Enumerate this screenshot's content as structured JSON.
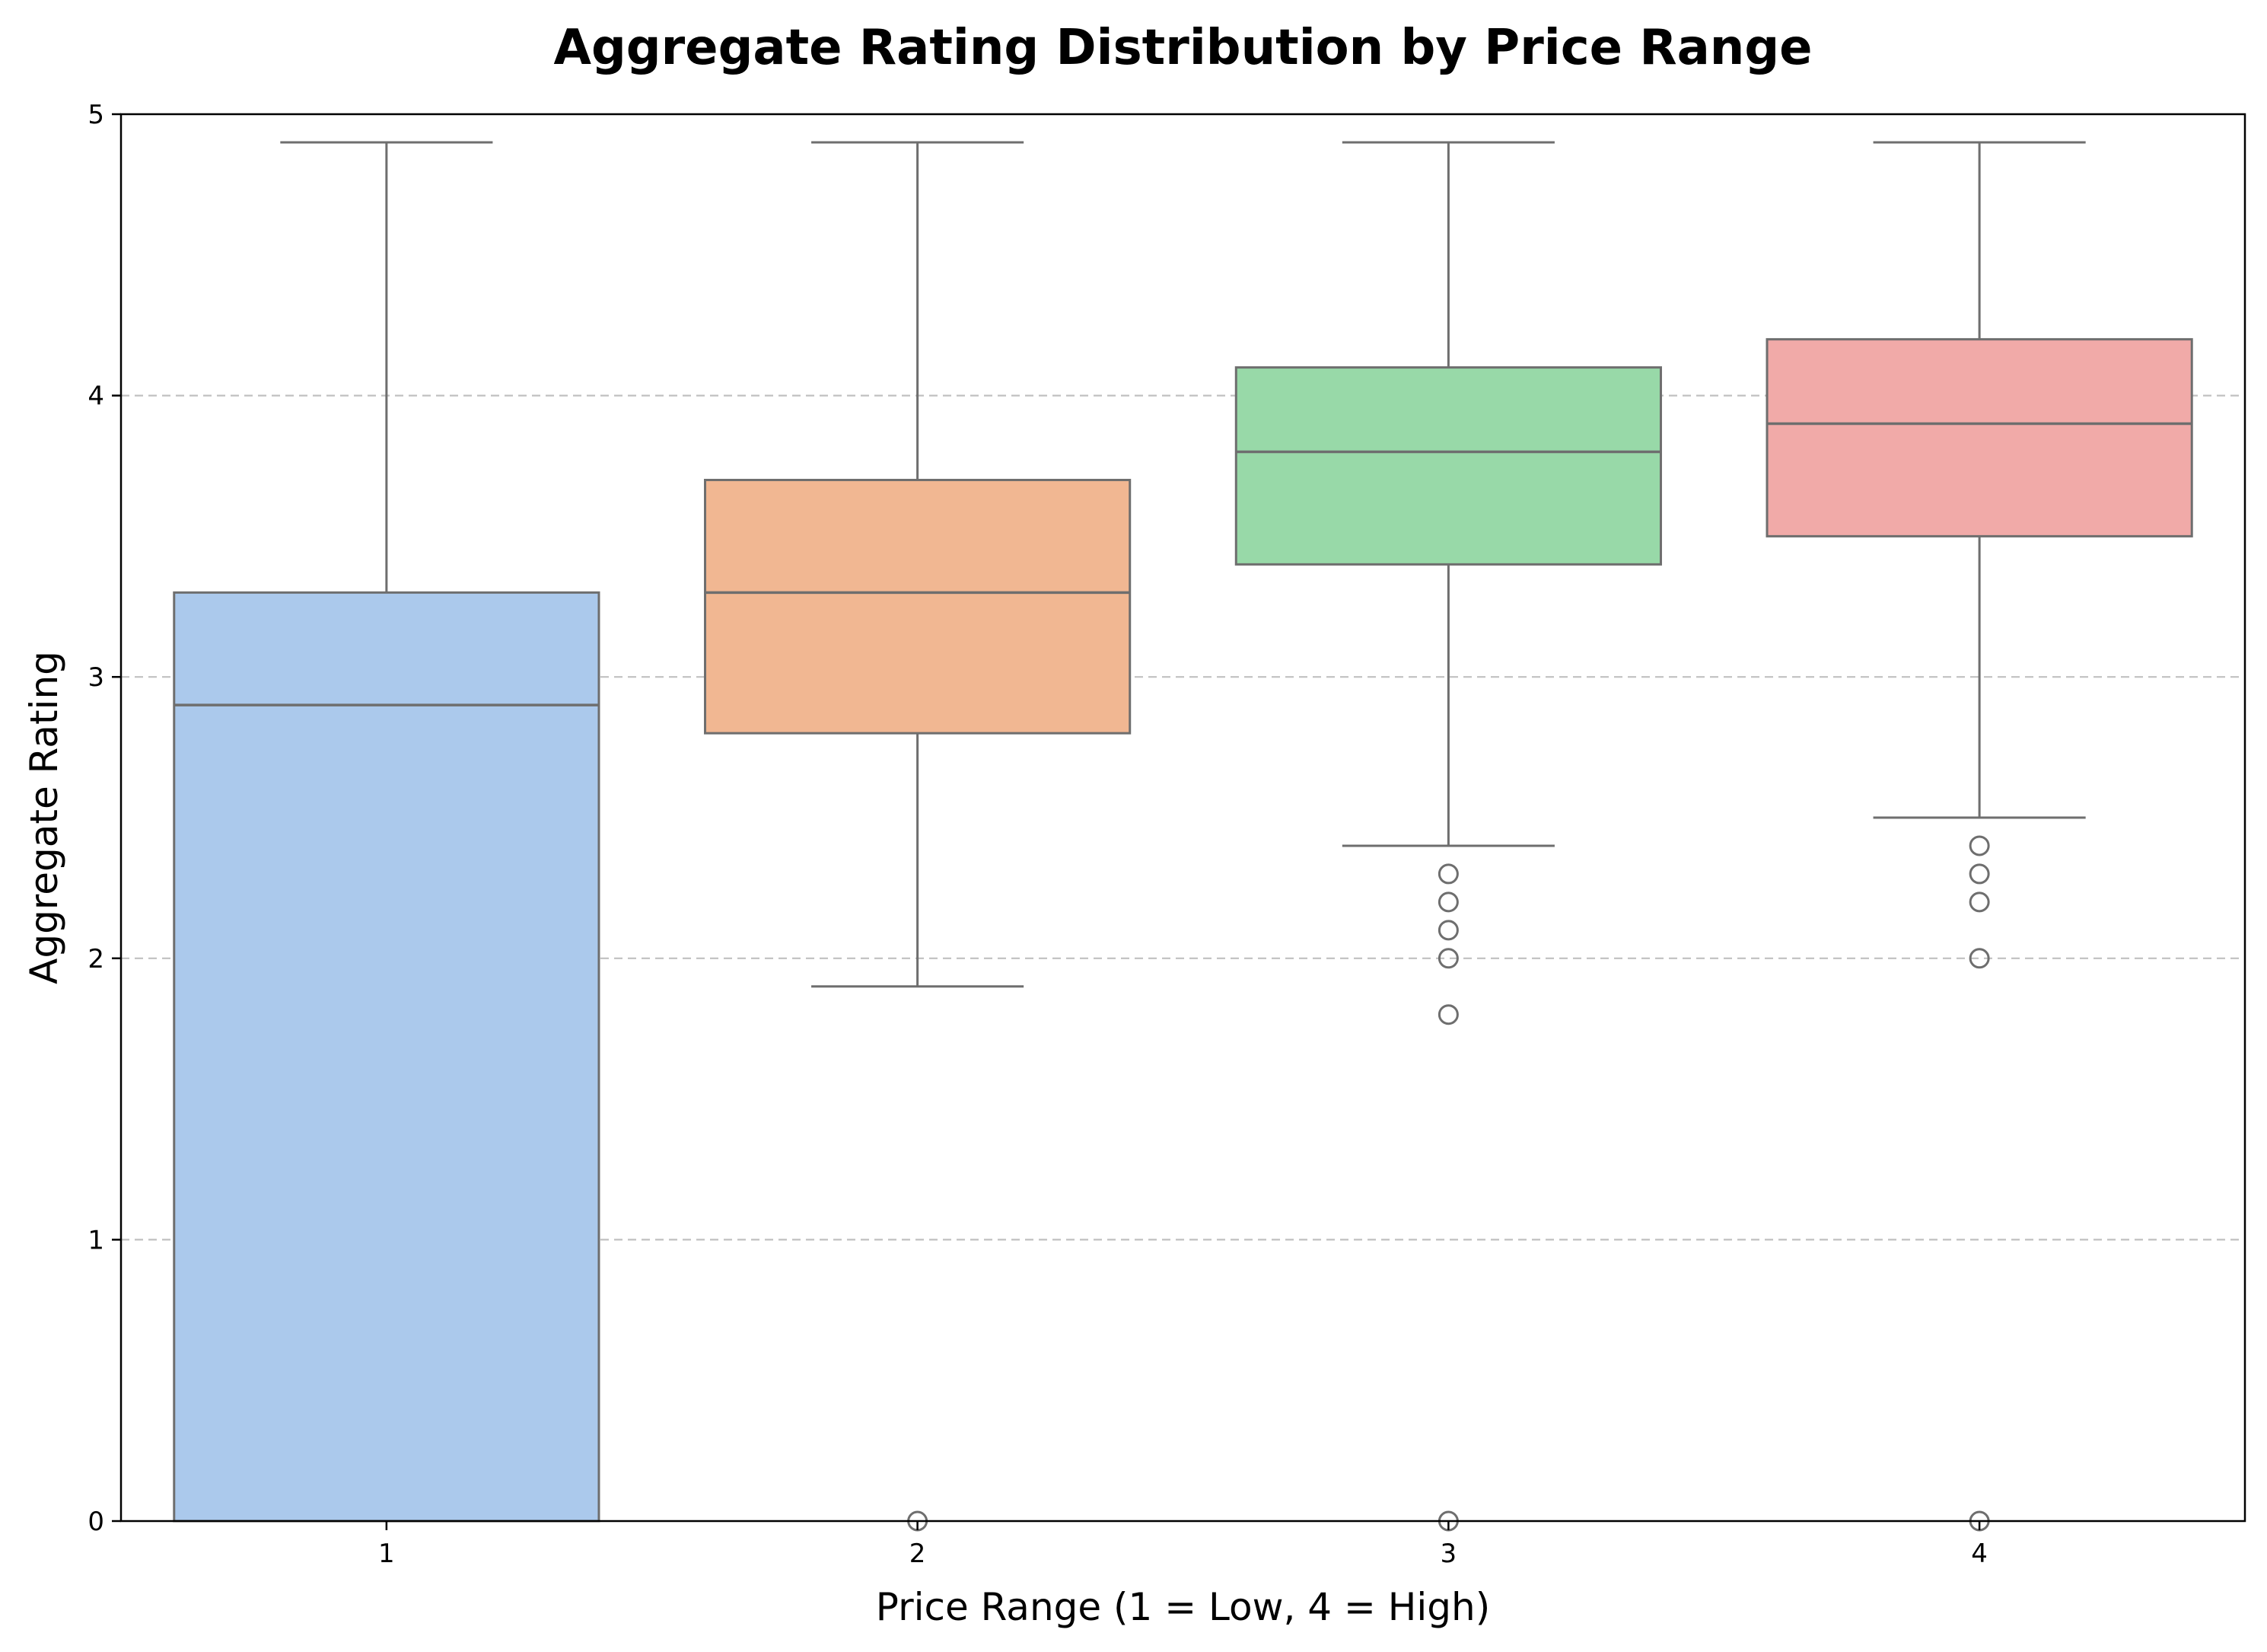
{
  "chart_data": {
    "type": "box",
    "title": "Aggregate Rating Distribution by Price Range",
    "xlabel": "Price Range (1 = Low, 4 = High)",
    "ylabel": "Aggregate Rating",
    "ylim": [
      0,
      5
    ],
    "yticks": [
      "0",
      "1",
      "2",
      "3",
      "4",
      "5"
    ],
    "grid": "y-axis, dashed",
    "categories": [
      "1",
      "2",
      "3",
      "4"
    ],
    "boxes": [
      {
        "category": "1",
        "whisker_low": 0.0,
        "q1": 0.0,
        "median": 2.9,
        "q3": 3.3,
        "whisker_high": 4.9,
        "outliers": [],
        "color": "#abc9ec"
      },
      {
        "category": "2",
        "whisker_low": 1.9,
        "q1": 2.8,
        "median": 3.3,
        "q3": 3.7,
        "whisker_high": 4.9,
        "outliers": [
          0.0
        ],
        "color": "#f1b792"
      },
      {
        "category": "3",
        "whisker_low": 2.4,
        "q1": 3.4,
        "median": 3.8,
        "q3": 4.1,
        "whisker_high": 4.9,
        "outliers": [
          2.3,
          2.2,
          2.1,
          2.0,
          1.8,
          0.0
        ],
        "color": "#98d9a8"
      },
      {
        "category": "4",
        "whisker_low": 2.5,
        "q1": 3.5,
        "median": 3.9,
        "q3": 4.2,
        "whisker_high": 4.9,
        "outliers": [
          2.4,
          2.3,
          2.2,
          2.0,
          0.0
        ],
        "color": "#f1aaa8"
      }
    ],
    "line_color": "#6e6e6e",
    "grid_color": "#c0c0c0"
  }
}
